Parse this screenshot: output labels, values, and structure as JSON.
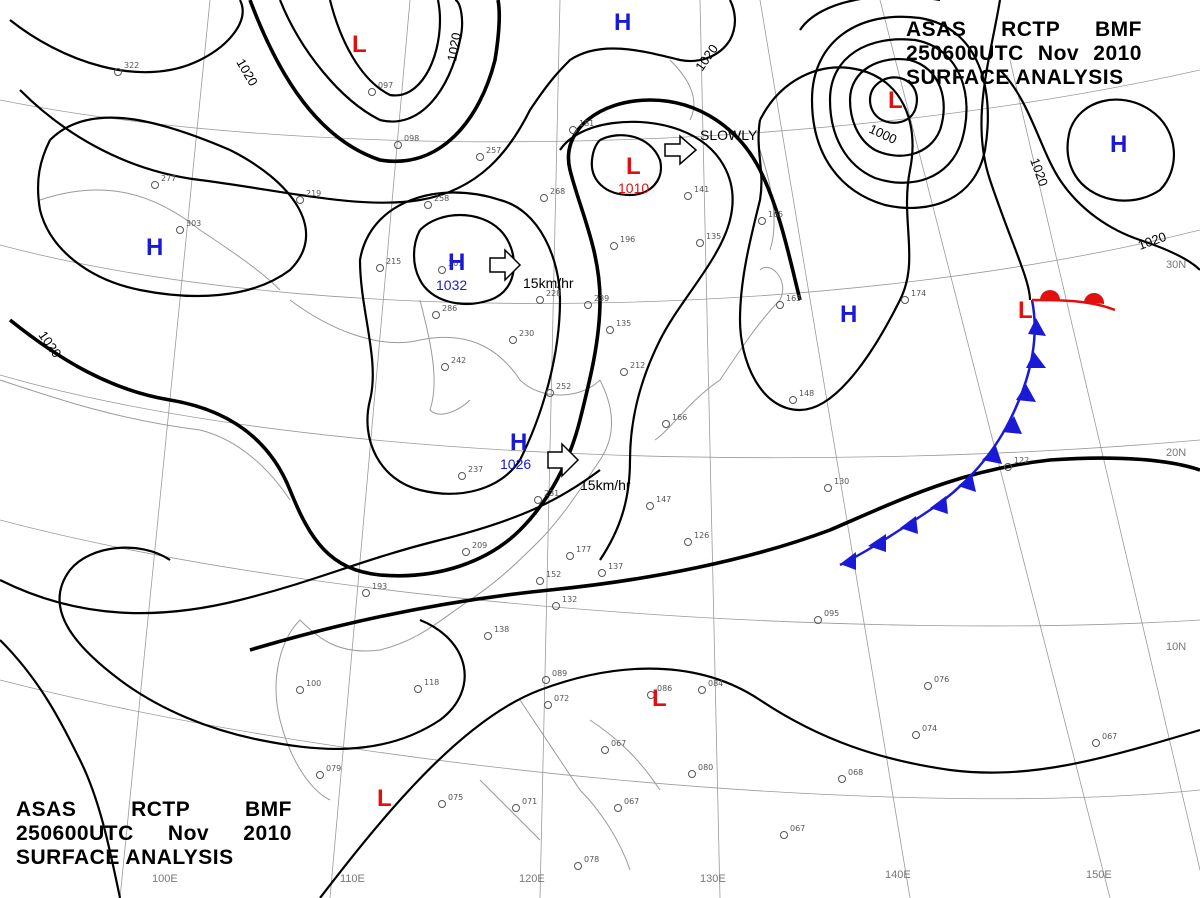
{
  "title": {
    "line1": [
      "ASAS",
      "RCTP",
      "BMF"
    ],
    "line2": [
      "250600UTC",
      "Nov",
      "2010"
    ],
    "line3": "SURFACE ANALYSIS"
  },
  "colors": {
    "high": "#1a1ad6",
    "low": "#e01010",
    "isobar": "#000000",
    "grid": "#9a9a9a",
    "cold_front": "#1a1ad6",
    "warm_front": "#e01010"
  },
  "pressure_centers": [
    {
      "type": "L",
      "value": ""
    },
    {
      "type": "H",
      "value": ""
    },
    {
      "type": "L",
      "value": "1010"
    },
    {
      "type": "H",
      "value": "1032"
    },
    {
      "type": "H",
      "value": "1026"
    },
    {
      "type": "H",
      "value": ""
    },
    {
      "type": "L",
      "value": ""
    },
    {
      "type": "H",
      "value": ""
    },
    {
      "type": "H",
      "value": ""
    },
    {
      "type": "L",
      "value": ""
    },
    {
      "type": "L",
      "value": ""
    },
    {
      "type": "L",
      "value": ""
    }
  ],
  "isobar_labels": [
    "1020",
    "1020",
    "1020",
    "1020",
    "1020",
    "1020",
    "1000"
  ],
  "motion_labels": [
    "SLOWLY",
    "15km/hr",
    "15km/hr"
  ],
  "longitude_labels": [
    "100E",
    "110E",
    "120E",
    "130E",
    "140E",
    "150E"
  ],
  "latitude_labels": [
    "30N",
    "20N",
    "10N"
  ],
  "station_plots": [
    "322",
    "277",
    "303",
    "097",
    "098",
    "181",
    "257",
    "219",
    "258",
    "215",
    "307",
    "268",
    "196",
    "135",
    "165",
    "141",
    "174",
    "163",
    "148",
    "286",
    "228",
    "239",
    "230",
    "242",
    "252",
    "135",
    "212",
    "166",
    "237",
    "231",
    "147",
    "209",
    "177",
    "137",
    "126",
    "130",
    "122",
    "193",
    "152",
    "132",
    "138",
    "118",
    "100",
    "089",
    "072",
    "086",
    "084",
    "095",
    "076",
    "074",
    "067",
    "079",
    "075",
    "071",
    "067",
    "078",
    "067",
    "068",
    "080",
    "067"
  ]
}
